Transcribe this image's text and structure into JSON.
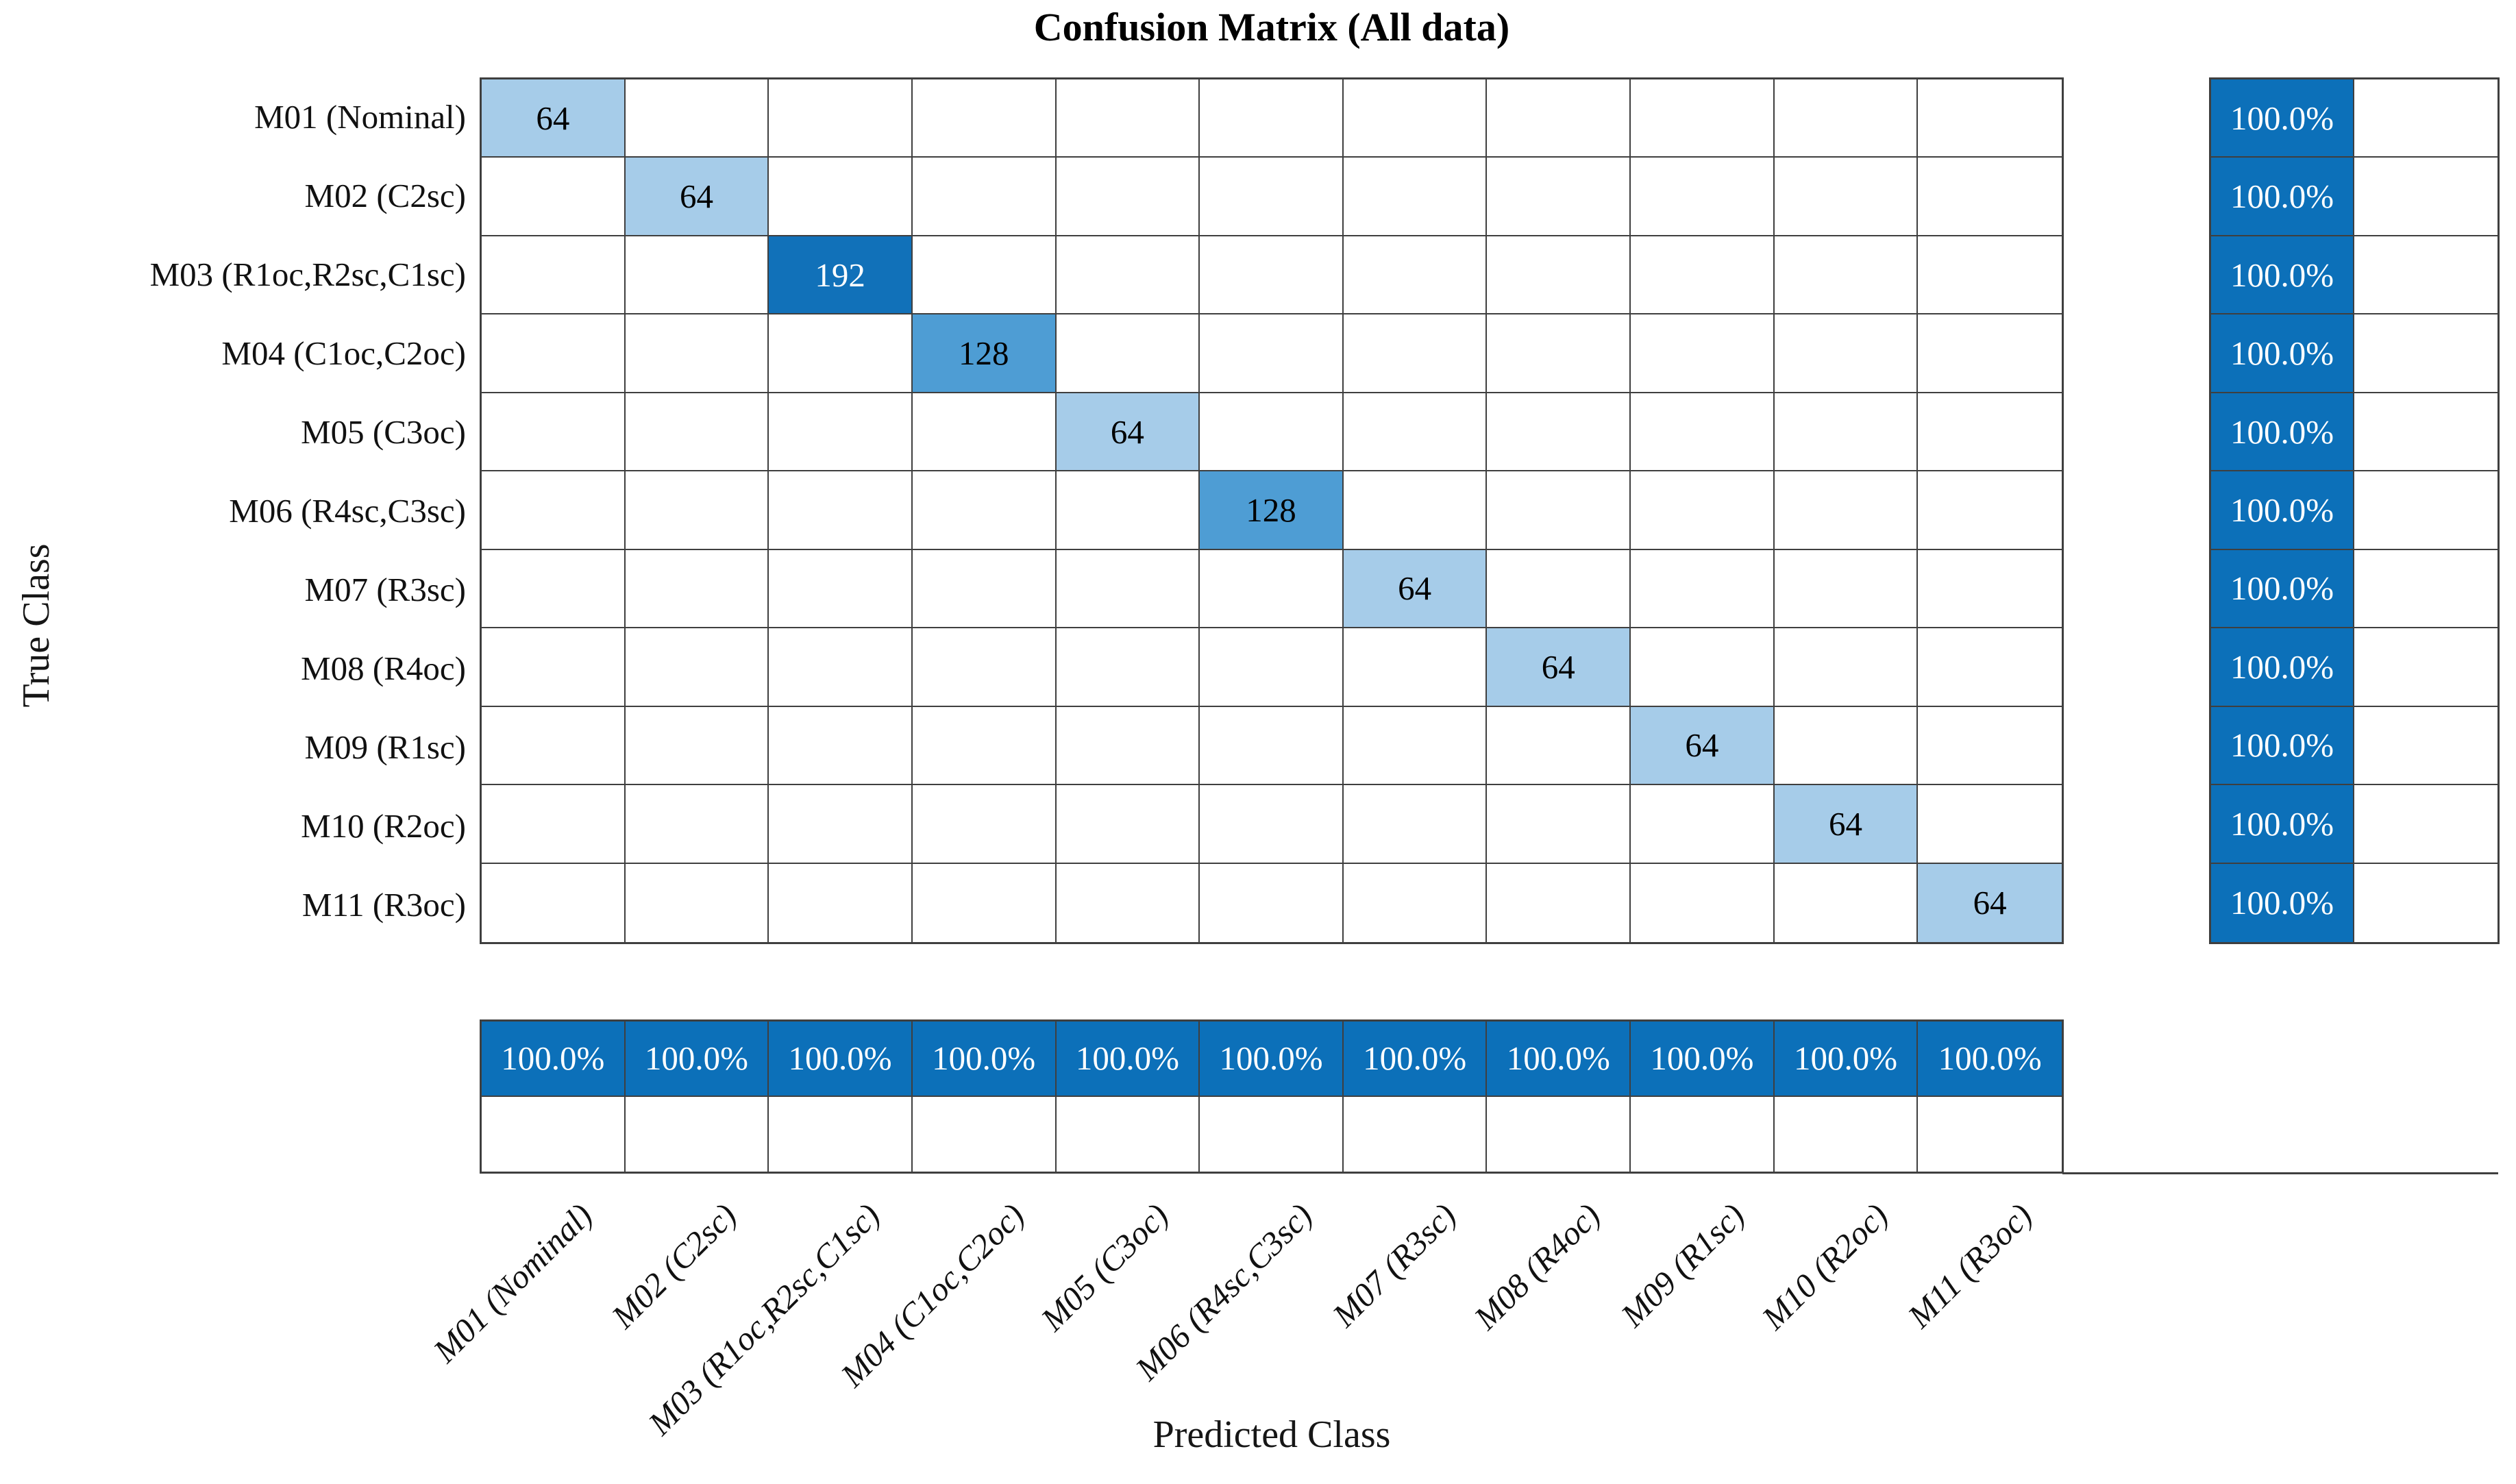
{
  "chart_data": {
    "type": "heatmap",
    "variant": "confusion_matrix",
    "title": "Confusion Matrix (All data)",
    "xlabel": "Predicted Class",
    "ylabel": "True Class",
    "classes": [
      "M01 (Nominal)",
      "M02 (C2sc)",
      "M03 (R1oc,R2sc,C1sc)",
      "M04 (C1oc,C2oc)",
      "M05 (C3oc)",
      "M06 (R4sc,C3sc)",
      "M07 (R3sc)",
      "M08 (R4oc)",
      "M09 (R1sc)",
      "M10 (R2oc)",
      "M11 (R3oc)"
    ],
    "diagonal_values": [
      64,
      64,
      192,
      128,
      64,
      128,
      64,
      64,
      64,
      64,
      64
    ],
    "off_diagonal_cells": "blank",
    "row_summary_percent": [
      "100.0%",
      "100.0%",
      "100.0%",
      "100.0%",
      "100.0%",
      "100.0%",
      "100.0%",
      "100.0%",
      "100.0%",
      "100.0%",
      "100.0%"
    ],
    "column_summary_percent": [
      "100.0%",
      "100.0%",
      "100.0%",
      "100.0%",
      "100.0%",
      "100.0%",
      "100.0%",
      "100.0%",
      "100.0%",
      "100.0%",
      "100.0%"
    ],
    "legend": "none",
    "grid": true,
    "white_text_min_count": 192,
    "colors": {
      "count_64": "#A6CCE9",
      "count_128": "#4E9DD4",
      "count_192": "#1171B9",
      "summary_fill": "#0C70B9",
      "grid_line": "#3F3F3F",
      "text_dark": "#000000",
      "text_light": "#FFFFFF"
    }
  }
}
